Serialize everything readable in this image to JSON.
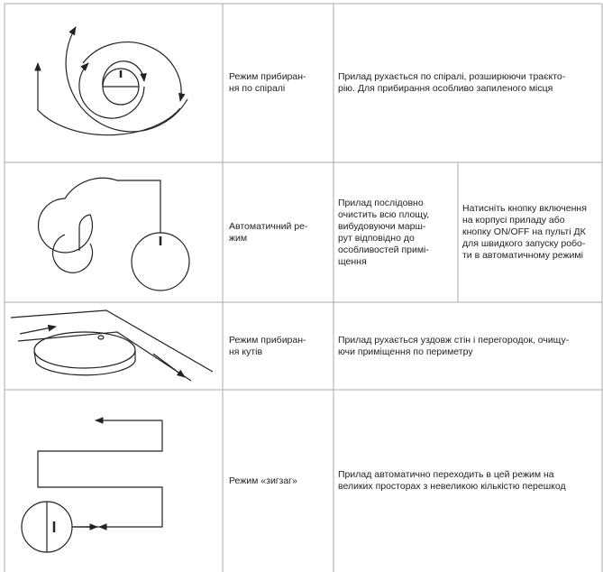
{
  "rows": [
    {
      "mode": [
        "Режим прибиран-",
        "ня по спіралі"
      ],
      "descriptions": [
        [
          "Прилад рухається по спіралі, розширюючи траєкто-",
          "рію. Для прибирання особливо запиленого місця"
        ]
      ]
    },
    {
      "mode": [
        "Автоматичний ре-",
        "жим"
      ],
      "descriptions": [
        [
          "Прилад послідовно",
          "очистить всю площу,",
          "вибудовуючи марш-",
          "рут відповідно до",
          "особливостей примі-",
          "щення"
        ],
        [
          "Натисніть кнопку включення",
          "на корпусі приладу або",
          "кнопку ON/OFF на пульті ДК",
          "для швидкого запуску робо-",
          "ти в автоматичному режимі"
        ]
      ]
    },
    {
      "mode": [
        "Режим прибиран-",
        "ня кутів"
      ],
      "descriptions": [
        [
          "Прилад рухається уздовж стін і перегородок, очищу-",
          "ючи приміщення по периметру"
        ]
      ]
    },
    {
      "mode": [
        "Режим «зигзаг»"
      ],
      "descriptions": [
        [
          "Прилад автоматично переходить в цей режим на",
          "великих просторах з невеликою кількістю перешкод"
        ]
      ]
    }
  ]
}
